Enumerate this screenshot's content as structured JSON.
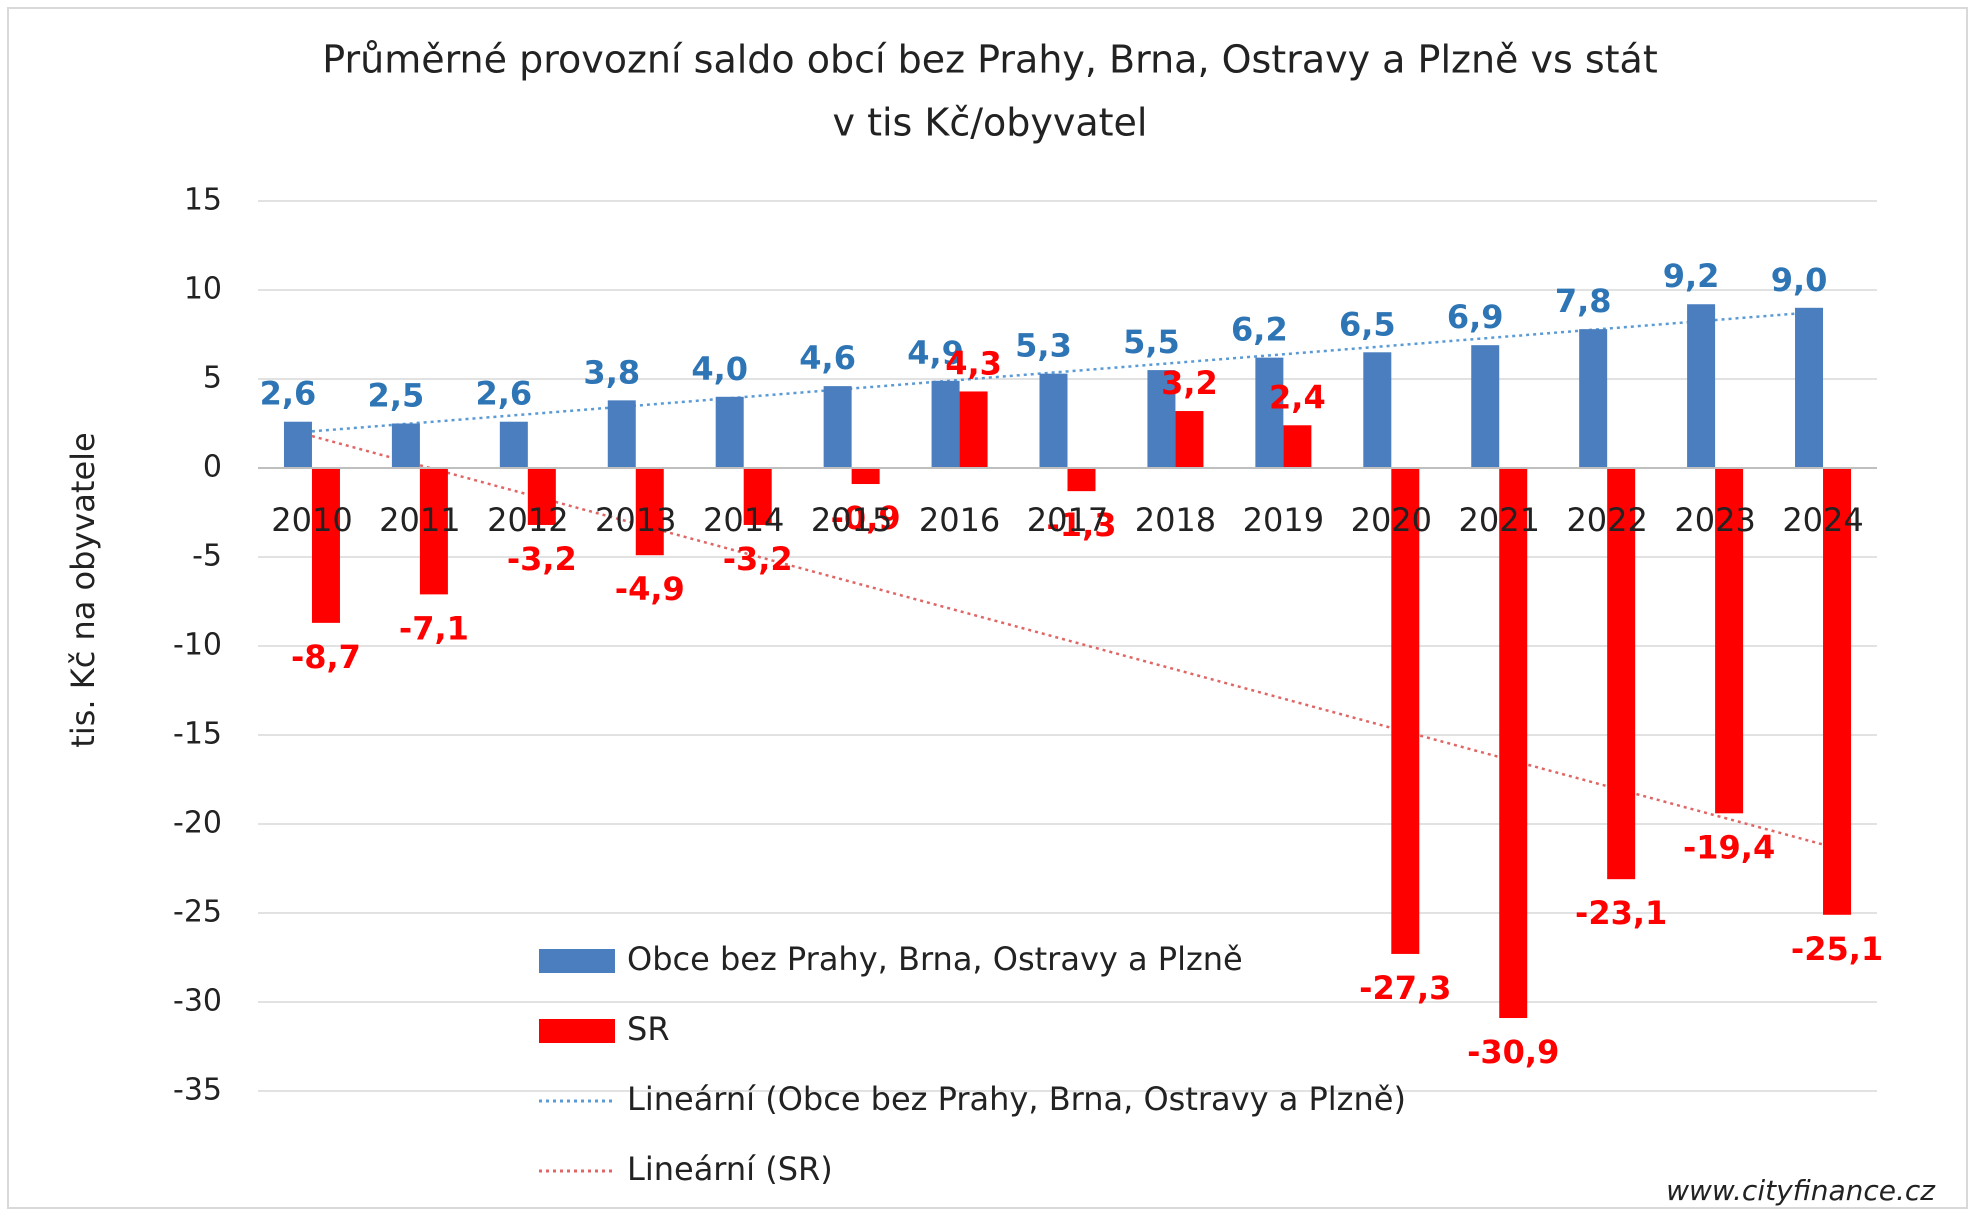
{
  "chart_data": {
    "type": "bar",
    "title": [
      "Průměrné provozní saldo obcí bez Prahy, Brna, Ostravy a Plzně vs stát",
      "v tis Kč/obyvatel"
    ],
    "y_label": "tis. Kč na obyvatele",
    "source": "www.cityfinance.cz",
    "categories": [
      "2010",
      "2011",
      "2012",
      "2013",
      "2014",
      "2015",
      "2016",
      "2017",
      "2018",
      "2019",
      "2020",
      "2021",
      "2022",
      "2023",
      "2024"
    ],
    "series": [
      {
        "name": "Obce bez Prahy, Brna, Ostravy a Plzně",
        "color": "#4a7ebf",
        "values": [
          2.6,
          2.5,
          2.6,
          3.8,
          4.0,
          4.6,
          4.9,
          5.3,
          5.5,
          6.2,
          6.5,
          6.9,
          7.8,
          9.2,
          9.0
        ],
        "value_labels": [
          "2,6",
          "2,5",
          "2,6",
          "3,8",
          "4,0",
          "4,6",
          "4,9",
          "5,3",
          "5,5",
          "6,2",
          "6,5",
          "6,9",
          "7,8",
          "9,2",
          "9,0"
        ],
        "label_color": "#2e75b6",
        "trendline": {
          "name": "Lineární (Obce bez Prahy, Brna, Ostravy a Plzně)",
          "color": "#5b9bd5"
        }
      },
      {
        "name": "SR",
        "color": "#ff0000",
        "values": [
          -8.7,
          -7.1,
          -3.2,
          -4.9,
          -3.2,
          -0.9,
          4.3,
          -1.3,
          3.2,
          2.4,
          -27.3,
          -30.9,
          -23.1,
          -19.4,
          -25.1
        ],
        "value_labels": [
          "-8,7",
          "-7,1",
          "-3,2",
          "-4,9",
          "-3,2",
          "-0,9",
          "4,3",
          "-1,3",
          "3,2",
          "2,4",
          "-27,3",
          "-30,9",
          "-23,1",
          "-19,4",
          "-25,1"
        ],
        "label_color": "#ff0000",
        "trendline": {
          "name": "Lineární (SR)",
          "color": "#e06666"
        }
      }
    ],
    "ylim": [
      -35,
      15
    ],
    "yticks": [
      15,
      10,
      5,
      0,
      -5,
      -10,
      -15,
      -20,
      -25,
      -30,
      -35
    ],
    "grid": true
  }
}
